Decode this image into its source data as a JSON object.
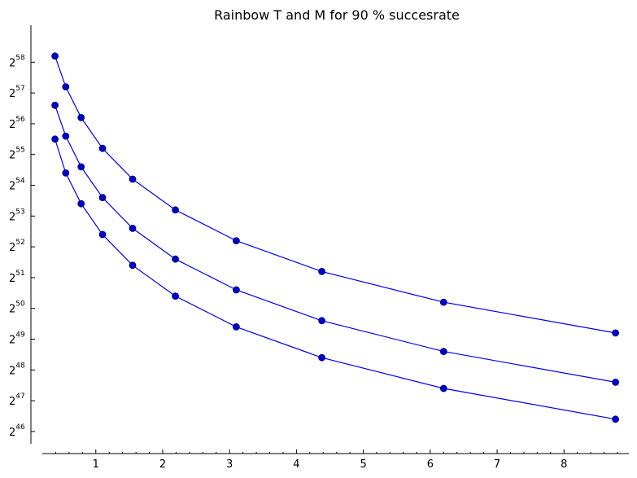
{
  "chart_data": {
    "type": "line",
    "title": "Rainbow T and M for 90 % succesrate",
    "xlabel": "",
    "ylabel": "",
    "x_ticks": [
      "1",
      "2",
      "3",
      "4",
      "5",
      "6",
      "7",
      "8"
    ],
    "y_ticks": [
      {
        "base": "2",
        "exp": "46"
      },
      {
        "base": "2",
        "exp": "47"
      },
      {
        "base": "2",
        "exp": "48"
      },
      {
        "base": "2",
        "exp": "49"
      },
      {
        "base": "2",
        "exp": "50"
      },
      {
        "base": "2",
        "exp": "51"
      },
      {
        "base": "2",
        "exp": "52"
      },
      {
        "base": "2",
        "exp": "53"
      },
      {
        "base": "2",
        "exp": "54"
      },
      {
        "base": "2",
        "exp": "55"
      },
      {
        "base": "2",
        "exp": "56"
      },
      {
        "base": "2",
        "exp": "57"
      },
      {
        "base": "2",
        "exp": "58"
      }
    ],
    "y_scale": "log2",
    "xlim": [
      0.2,
      8.97
    ],
    "ylim_log2": [
      45.6,
      59.2
    ],
    "x": [
      0.39,
      0.55,
      0.78,
      1.1,
      1.55,
      2.19,
      3.1,
      4.38,
      6.2,
      8.77
    ],
    "series": [
      {
        "log2_values": [
          58.2,
          57.2,
          56.2,
          55.2,
          54.2,
          53.2,
          52.2,
          51.2,
          50.2,
          49.2
        ]
      },
      {
        "log2_values": [
          56.6,
          55.6,
          54.6,
          53.6,
          52.6,
          51.6,
          50.6,
          49.6,
          48.6,
          47.6
        ]
      },
      {
        "log2_values": [
          55.5,
          54.4,
          53.4,
          52.4,
          51.4,
          50.4,
          49.4,
          48.4,
          47.4,
          46.4
        ]
      }
    ],
    "grid": false,
    "legend": "none",
    "line_color": "#0000ee",
    "marker_color": "#0000cc"
  }
}
